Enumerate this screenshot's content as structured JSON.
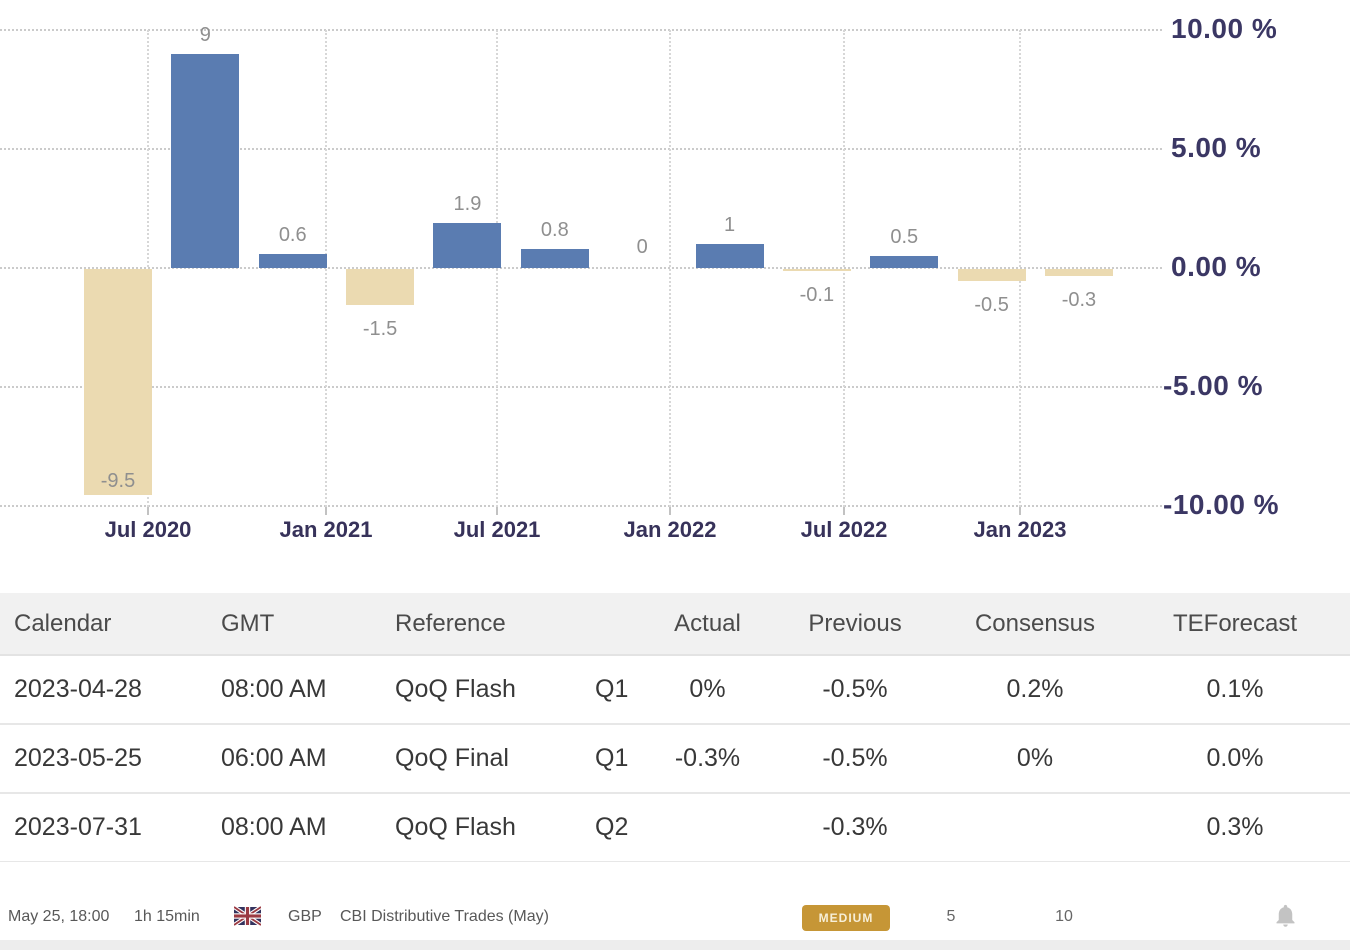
{
  "chart_data": {
    "type": "bar",
    "title": "",
    "unit": "%",
    "values": [
      -9.5,
      9,
      0.6,
      -1.5,
      1.9,
      0.8,
      0,
      1,
      -0.1,
      0.5,
      -0.5,
      -0.3
    ],
    "bar_labels": [
      "-9.5",
      "9",
      "0.6",
      "-1.5",
      "1.9",
      "0.8",
      "0",
      "1",
      "-0.1",
      "0.5",
      "-0.5",
      "-0.3"
    ],
    "x_tick_labels": [
      "Jul 2020",
      "Jan 2021",
      "Jul 2021",
      "Jan 2022",
      "Jul 2022",
      "Jan 2023"
    ],
    "y_ticks": [
      {
        "value": 10,
        "label": "10.00 %"
      },
      {
        "value": 5,
        "label": "5.00 %"
      },
      {
        "value": 0,
        "label": "0.00 %"
      },
      {
        "value": -5,
        "label": "-5.00 %"
      },
      {
        "value": -10,
        "label": "-10.00 %"
      }
    ],
    "ylim": [
      -10,
      10
    ],
    "grid": true,
    "legend": "none",
    "positive_color": "#5a7cb1",
    "negative_color": "#ebdab1",
    "value_label_color": "#8f8f8f"
  },
  "table": {
    "headers": [
      "Calendar",
      "GMT",
      "Reference",
      "",
      "Actual",
      "Previous",
      "Consensus",
      "TEForecast"
    ],
    "rows": [
      [
        "2023-04-28",
        "08:00 AM",
        "QoQ Flash",
        "Q1",
        "0%",
        "-0.5%",
        "0.2%",
        "0.1%"
      ],
      [
        "2023-05-25",
        "06:00 AM",
        "QoQ Final",
        "Q1",
        "-0.3%",
        "-0.5%",
        "0%",
        "0.0%"
      ],
      [
        "2023-07-31",
        "08:00 AM",
        "QoQ Flash",
        "Q2",
        "",
        "-0.3%",
        "",
        "0.3%"
      ]
    ]
  },
  "footer": {
    "datetime": "May 25, 18:00",
    "countdown": "1h 15min",
    "currency": "GBP",
    "event": "CBI Distributive Trades (May)",
    "importance": "MEDIUM",
    "stat_1": "5",
    "stat_2": "10",
    "flag": "united-kingdom"
  }
}
